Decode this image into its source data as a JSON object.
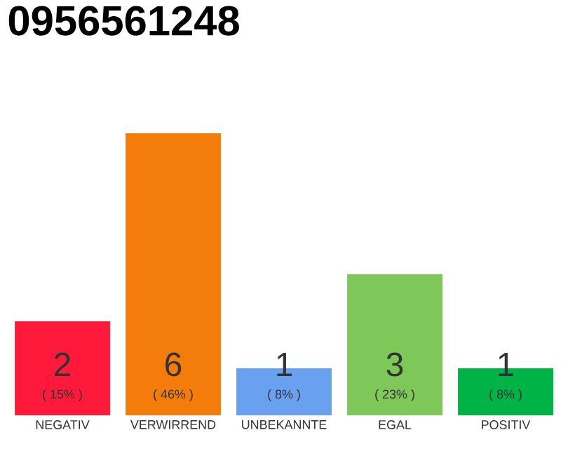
{
  "chart_data": {
    "type": "bar",
    "title": "0956561248",
    "categories": [
      "NEGATIV",
      "VERWIRREND",
      "UNBEKANNTE",
      "EGAL",
      "POSITIV"
    ],
    "values": [
      2,
      6,
      1,
      3,
      1
    ],
    "colors": [
      "#ff1a3c",
      "#f47c0a",
      "#6aa0f0",
      "#7ec85a",
      "#00b347"
    ],
    "data_labels": true,
    "annotations": [
      "( 15% )",
      "( 46% )",
      "( 8% )",
      "( 23% )",
      "( 8% )"
    ],
    "tick_labels": "x"
  }
}
